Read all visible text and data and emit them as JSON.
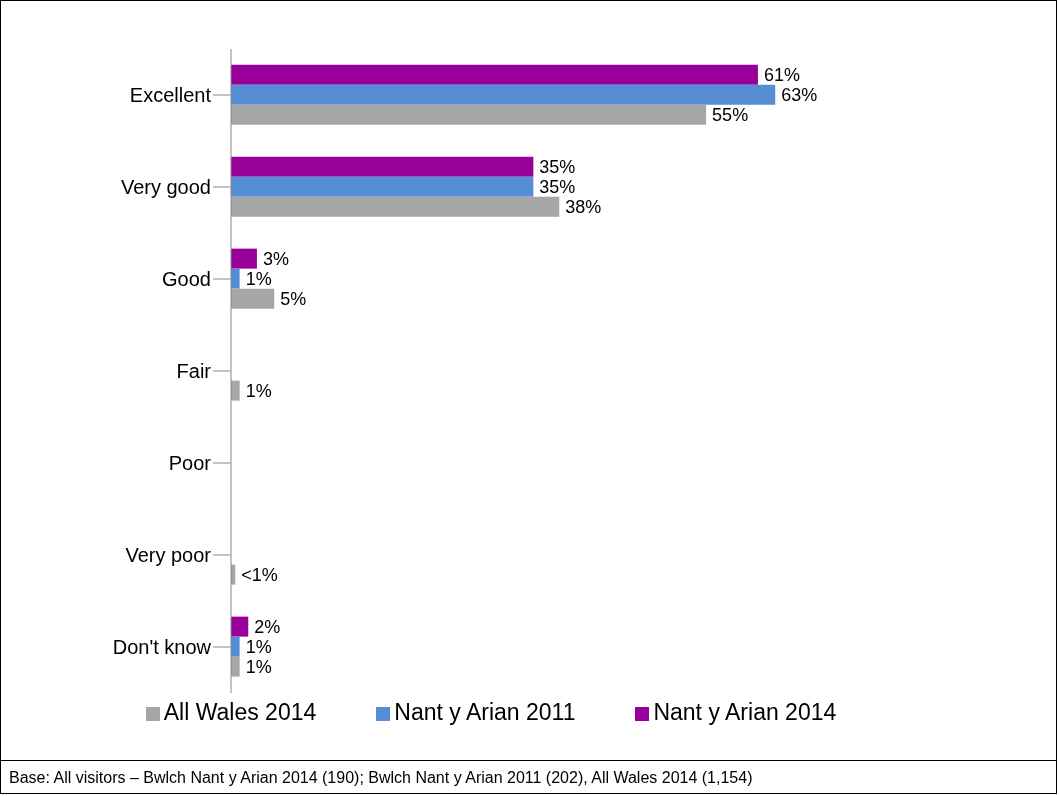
{
  "chart_data": {
    "type": "bar",
    "orientation": "horizontal",
    "categories": [
      "Excellent",
      "Very good",
      "Good",
      "Fair",
      "Poor",
      "Very poor",
      "Don't know"
    ],
    "series": [
      {
        "name": "Nant y Arian 2014",
        "color": "#990099",
        "values": [
          61,
          35,
          3,
          null,
          null,
          null,
          2
        ],
        "value_labels": [
          "61%",
          "35%",
          "3%",
          null,
          null,
          null,
          "2%"
        ]
      },
      {
        "name": "Nant y Arian 2011",
        "color": "#558ed5",
        "values": [
          63,
          35,
          1,
          null,
          null,
          null,
          1
        ],
        "value_labels": [
          "63%",
          "35%",
          "1%",
          null,
          null,
          null,
          "1%"
        ]
      },
      {
        "name": "All Wales 2014",
        "color": "#a6a6a6",
        "values": [
          55,
          38,
          5,
          1,
          null,
          0.5,
          1
        ],
        "value_labels": [
          "55%",
          "38%",
          "5%",
          "1%",
          null,
          "<1%",
          "1%"
        ]
      }
    ],
    "legend": "bottom",
    "grid": false,
    "annotations": [
      "Base: All visitors – Bwlch Nant y Arian 2014 (190); Bwlch Nant y Arian 2011 (202), All Wales 2014 (1,154)"
    ]
  }
}
